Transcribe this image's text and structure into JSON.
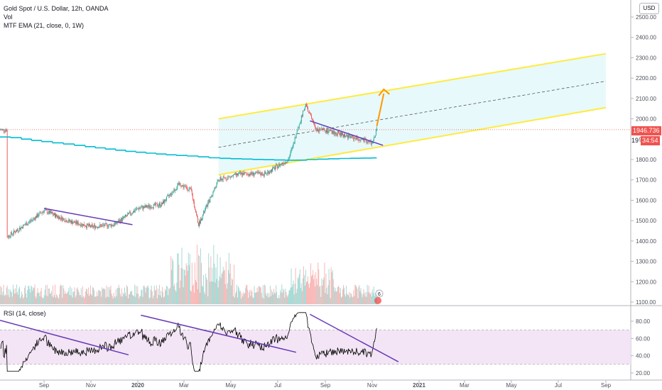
{
  "legend": {
    "symbol": "Gold Spot / U.S. Dollar, 12h, OANDA",
    "volume": "Vol",
    "ema": "MTF EMA (21, close, 0, 1W)",
    "rsi": "RSI (14, close)"
  },
  "currency_button": "USD",
  "last_price_label": "1946.736",
  "countdown_label": "34:54",
  "partial_price_prefix": "19",
  "volume_badge": "6",
  "colors": {
    "up": "#26a69a",
    "down": "#ef5350",
    "ema": "#00bcd4",
    "channel_line": "#ffeb3b",
    "channel_fill": "#e0f7fa",
    "trendline": "#673ab7",
    "arrow": "#ff9800",
    "rsi_line": "#000000",
    "rsi_band": "#f3e5f5",
    "price_tag": "#ef5350"
  },
  "chart_data": [
    {
      "type": "candlestick",
      "title": "Gold Spot / U.S. Dollar, 12h, OANDA",
      "y_axis_ticks": [
        1100,
        1200,
        1300,
        1400,
        1500,
        1600,
        1700,
        1800,
        1900,
        2000,
        2100,
        2200,
        2300,
        2400,
        2500
      ],
      "x_axis_labels": [
        "Sep",
        "Nov",
        "2020",
        "Mar",
        "May",
        "Jul",
        "Sep",
        "Nov",
        "2021",
        "Mar",
        "May",
        "Jul",
        "Sep"
      ],
      "ylim": [
        1095,
        2540
      ],
      "approx_close_path": {
        "x": [
          "2019-07-15",
          "2019-08-15",
          "2019-09-01",
          "2019-10-01",
          "2019-11-01",
          "2019-12-01",
          "2020-01-01",
          "2020-02-01",
          "2020-02-24",
          "2020-03-10",
          "2020-03-20",
          "2020-04-15",
          "2020-05-15",
          "2020-06-15",
          "2020-07-15",
          "2020-08-06",
          "2020-08-20",
          "2020-09-15",
          "2020-10-15",
          "2020-11-01",
          "2020-11-07"
        ],
        "y": [
          1420,
          1500,
          1550,
          1500,
          1470,
          1480,
          1560,
          1580,
          1680,
          1650,
          1480,
          1700,
          1730,
          1730,
          1800,
          2070,
          1950,
          1930,
          1900,
          1880,
          1946
        ]
      },
      "last_price": 1946.736,
      "annotations": {
        "parallel_channel": {
          "start": "2020-04-15",
          "end": "2021-09-01",
          "upper": [
            2000,
            2320
          ],
          "middle": [
            1860,
            2185
          ],
          "lower": [
            1725,
            2055
          ]
        },
        "trendlines": [
          {
            "from": [
              "2019-09-01",
              1560
            ],
            "to": [
              "2019-12-25",
              1480
            ]
          },
          {
            "from": [
              "2020-08-12",
              1990
            ],
            "to": [
              "2020-11-15",
              1870
            ]
          }
        ],
        "arrow": {
          "from": [
            "2020-11-07",
            1965
          ],
          "to": [
            "2020-11-16",
            2145
          ]
        }
      }
    },
    {
      "type": "line",
      "title": "RSI (14, close)",
      "y_axis_ticks": [
        20,
        40,
        60,
        80
      ],
      "band": [
        30,
        70
      ],
      "ylim": [
        15,
        93
      ]
    }
  ]
}
